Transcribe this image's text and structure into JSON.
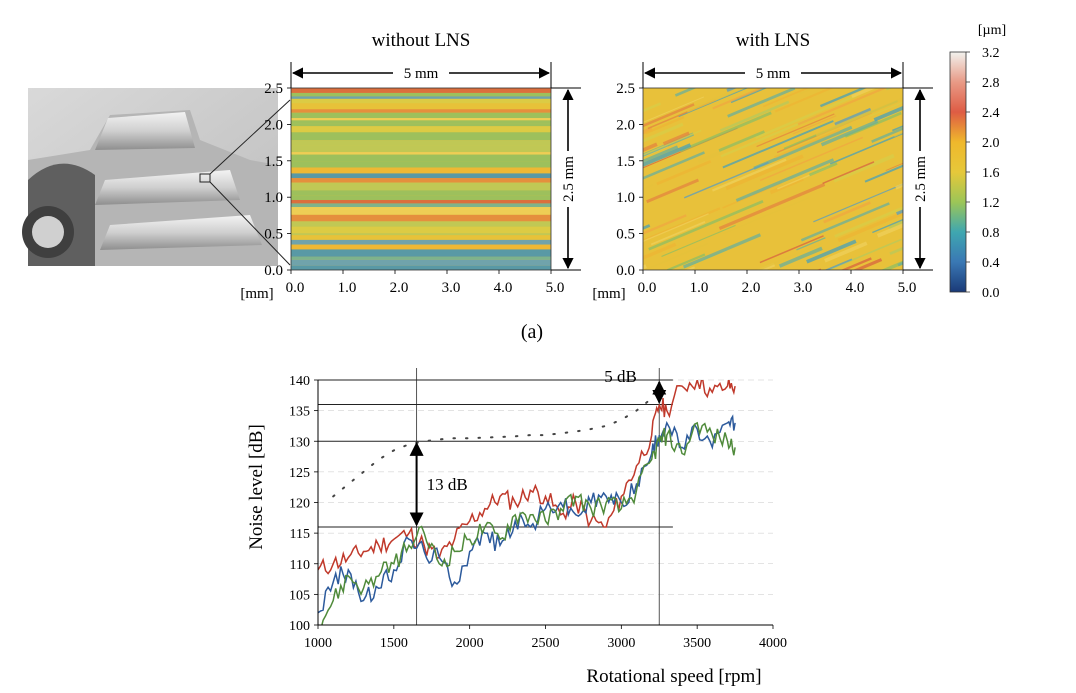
{
  "figure": {
    "caption_a": "(a)"
  },
  "surface_panels": [
    {
      "title": "without LNS",
      "width_label": "5 mm",
      "height_label": "2.5 mm",
      "unit_label": "[mm]",
      "x_ticks": [
        "0.0",
        "1.0",
        "2.0",
        "3.0",
        "4.0",
        "5.0"
      ],
      "y_ticks": [
        "0.0",
        "0.5",
        "1.0",
        "1.5",
        "2.0",
        "2.5"
      ],
      "texture": "horizontal"
    },
    {
      "title": "with LNS",
      "width_label": "5 mm",
      "height_label": "2.5 mm",
      "unit_label": "[mm]",
      "x_ticks": [
        "0.0",
        "1.0",
        "2.0",
        "3.0",
        "4.0",
        "5.0"
      ],
      "y_ticks": [
        "0.0",
        "0.5",
        "1.0",
        "1.5",
        "2.0",
        "2.5"
      ],
      "texture": "diagonal"
    }
  ],
  "colorbar": {
    "unit": "[µm]",
    "ticks": [
      "3.2",
      "2.8",
      "2.4",
      "2.0",
      "1.6",
      "1.2",
      "0.8",
      "0.4",
      "0.0"
    ],
    "colors": [
      "#f2f2ee",
      "#e89a86",
      "#de5c44",
      "#efb82c",
      "#e6c83a",
      "#9cc657",
      "#3fa7b0",
      "#3a78b4",
      "#1a3a78"
    ]
  },
  "gear_photo": {
    "description_icon": "gear-photo"
  },
  "chart_data": {
    "type": "line",
    "xlabel": "Rotational speed [rpm]",
    "ylabel": "Noise level [dB]",
    "xlim": [
      1000,
      4000
    ],
    "ylim": [
      100,
      140
    ],
    "x_ticks": [
      1000,
      1500,
      2000,
      2500,
      3000,
      3500,
      4000
    ],
    "y_ticks": [
      100,
      105,
      110,
      115,
      120,
      125,
      130,
      135,
      140
    ],
    "annotations": [
      {
        "text": "13 dB",
        "x": 1650,
        "y_from": 116,
        "y_to": 130
      },
      {
        "text": "5 dB",
        "x": 3250,
        "y_from": 136,
        "y_to": 140
      }
    ],
    "reference_lines": {
      "vertical_x": [
        1650,
        3250
      ],
      "horizontal_y": [
        116,
        130,
        136,
        140
      ]
    },
    "series": [
      {
        "color": "#c0392b",
        "style": "solid",
        "x": [
          1000,
          1100,
          1200,
          1300,
          1400,
          1500,
          1600,
          1700,
          1800,
          1900,
          2000,
          2100,
          2200,
          2300,
          2400,
          2500,
          2600,
          2700,
          2800,
          2900,
          3000,
          3100,
          3200,
          3250,
          3300,
          3400,
          3500,
          3600,
          3700,
          3750
        ],
        "values": [
          109,
          110,
          111,
          112,
          113,
          114,
          115,
          113,
          111,
          114,
          117,
          119,
          121,
          120,
          122,
          121,
          118,
          120,
          117,
          116,
          121,
          126,
          131,
          136,
          135,
          139,
          140,
          138,
          139,
          139
        ]
      },
      {
        "color": "#2c5a9c",
        "style": "solid",
        "x": [
          1000,
          1100,
          1200,
          1300,
          1400,
          1500,
          1600,
          1700,
          1800,
          1900,
          2000,
          2100,
          2200,
          2300,
          2400,
          2500,
          2600,
          2700,
          2800,
          2900,
          3000,
          3100,
          3200,
          3250,
          3300,
          3400,
          3500,
          3600,
          3700,
          3750
        ],
        "values": [
          102,
          107,
          109,
          104,
          106,
          109,
          114,
          112,
          111,
          107,
          112,
          115,
          113,
          117,
          116,
          119,
          120,
          118,
          120,
          121,
          120,
          123,
          128,
          131,
          133,
          129,
          132,
          129,
          133,
          133
        ]
      },
      {
        "color": "#4f8a3a",
        "style": "solid",
        "x": [
          1000,
          1100,
          1200,
          1300,
          1400,
          1500,
          1600,
          1700,
          1800,
          1900,
          2000,
          2100,
          2200,
          2300,
          2400,
          2500,
          2600,
          2700,
          2800,
          2900,
          3000,
          3100,
          3200,
          3250,
          3300,
          3400,
          3500,
          3600,
          3700,
          3750
        ],
        "values": [
          100,
          104,
          108,
          106,
          108,
          110,
          113,
          115,
          110,
          112,
          114,
          116,
          114,
          118,
          118,
          117,
          119,
          121,
          119,
          120,
          119,
          122,
          127,
          130,
          131,
          128,
          133,
          131,
          130,
          129
        ]
      },
      {
        "color": "#444444",
        "style": "dotted",
        "x": [
          1100,
          1200,
          1300,
          1400,
          1500,
          1600,
          1700,
          1800,
          1900,
          2000,
          2100,
          2200,
          2300,
          2400,
          2500,
          2600,
          2700,
          2800,
          2900,
          3000,
          3100,
          3200,
          3250
        ],
        "values": [
          121,
          123,
          125,
          127,
          128.5,
          129.5,
          130,
          130.3,
          130.5,
          130.5,
          130.6,
          130.7,
          130.8,
          131,
          131,
          131.3,
          131.6,
          132,
          132.5,
          133.5,
          135,
          137,
          138.5
        ]
      }
    ]
  }
}
